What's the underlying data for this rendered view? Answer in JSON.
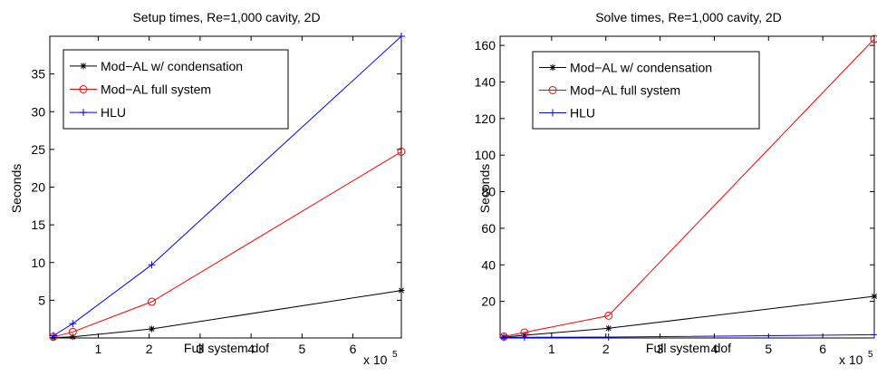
{
  "chart_data": [
    {
      "type": "line",
      "title": "Setup times, Re=1,000 cavity, 2D",
      "xlabel": "Full system dof",
      "ylabel": "Seconds",
      "x_multiplier": {
        "base": "x 10",
        "exponent": "5"
      },
      "xlim": [
        0.05,
        6.95
      ],
      "ylim": [
        0,
        40
      ],
      "xticks": [
        "1",
        "2",
        "3",
        "4",
        "5",
        "6"
      ],
      "xtick_values": [
        1,
        2,
        3,
        4,
        5,
        6
      ],
      "yticks": [
        "5",
        "10",
        "15",
        "20",
        "25",
        "30",
        "35"
      ],
      "ytick_values": [
        5,
        10,
        15,
        20,
        25,
        30,
        35
      ],
      "legend_position": "top-left",
      "series": [
        {
          "name": "Mod−AL w/ condensation",
          "color": "#000000",
          "marker": "star",
          "x": [
            0.12,
            0.5,
            2.05,
            6.95
          ],
          "y": [
            0.05,
            0.15,
            1.2,
            6.3
          ]
        },
        {
          "name": "Mod−AL full system",
          "color": "#ff0000",
          "marker": "circle",
          "x": [
            0.12,
            0.5,
            2.05,
            6.95
          ],
          "y": [
            0.15,
            0.8,
            4.8,
            24.7
          ]
        },
        {
          "name": "HLU",
          "color": "#0000ff",
          "marker": "plus",
          "x": [
            0.12,
            0.5,
            2.05,
            6.95
          ],
          "y": [
            0.3,
            1.9,
            9.7,
            40
          ]
        }
      ]
    },
    {
      "type": "line",
      "title": "Solve times, Re=1,000 cavity, 2D",
      "xlabel": "Full system dof",
      "ylabel": "Seconds",
      "x_multiplier": {
        "base": "x 10",
        "exponent": "5"
      },
      "xlim": [
        0.05,
        6.95
      ],
      "ylim": [
        0,
        165
      ],
      "xticks": [
        "1",
        "2",
        "3",
        "4",
        "5",
        "6"
      ],
      "xtick_values": [
        1,
        2,
        3,
        4,
        5,
        6
      ],
      "yticks": [
        "20",
        "40",
        "60",
        "80",
        "100",
        "120",
        "140",
        "160"
      ],
      "ytick_values": [
        20,
        40,
        60,
        80,
        100,
        120,
        140,
        160
      ],
      "legend_position": "top-left",
      "series": [
        {
          "name": "Mod−AL w/ condensation",
          "color": "#000000",
          "marker": "star",
          "x": [
            0.12,
            0.5,
            2.05,
            6.95
          ],
          "y": [
            0.5,
            1.5,
            5.3,
            22.8
          ]
        },
        {
          "name": "Mod−AL full system",
          "color": "#ff0000",
          "marker": "circle",
          "x": [
            0.12,
            0.5,
            2.05,
            6.95
          ],
          "y": [
            0.8,
            3.0,
            12.2,
            163.5
          ]
        },
        {
          "name": "HLU",
          "color": "#0000ff",
          "marker": "plus",
          "x": [
            0.12,
            0.5,
            2.05,
            6.95
          ],
          "y": [
            0.3,
            0.4,
            0.5,
            1.8
          ]
        }
      ]
    }
  ]
}
